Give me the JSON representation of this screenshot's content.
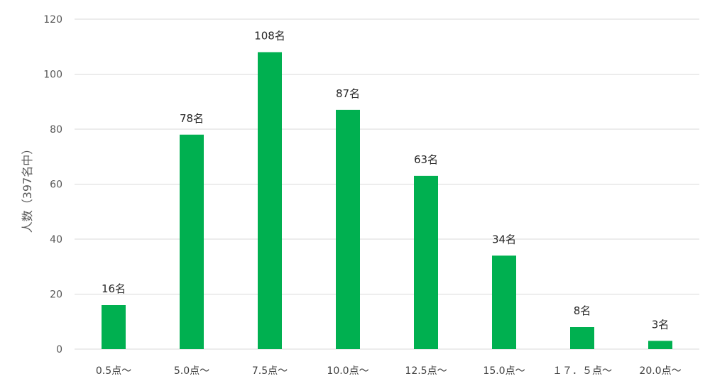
{
  "chart_data": {
    "type": "bar",
    "ylabel": "人数（397名中）",
    "ylim": [
      0,
      120
    ],
    "yticks": [
      0,
      20,
      40,
      60,
      80,
      100,
      120
    ],
    "categories": [
      "0.5点～",
      "5.0点～",
      "7.5点～",
      "10.0点～",
      "12.5点～",
      "15.0点～",
      "１７．５点～",
      "20.0点～"
    ],
    "values": [
      16,
      78,
      108,
      87,
      63,
      34,
      8,
      3
    ],
    "data_labels": [
      "16名",
      "78名",
      "108名",
      "87名",
      "63名",
      "34名",
      "8名",
      "3名"
    ],
    "bar_color": "#00b050",
    "grid": true,
    "gridline_color": "#d9d9d9"
  }
}
